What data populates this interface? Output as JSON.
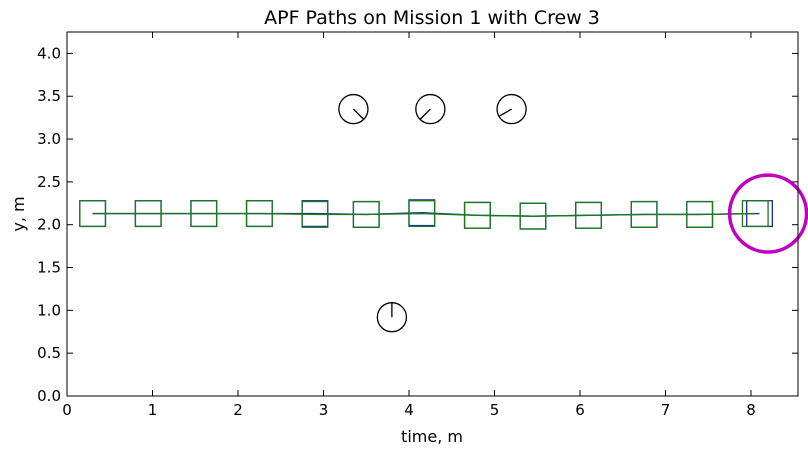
{
  "chart_data": {
    "type": "scatter",
    "title": "APF Paths on Mission 1 with Crew 3",
    "xlabel": "time, m",
    "ylabel": "y, m",
    "xlim": [
      0,
      8.55
    ],
    "ylim": [
      0,
      4.25
    ],
    "xticks": [
      0,
      1,
      2,
      3,
      4,
      5,
      6,
      7,
      8
    ],
    "yticks": [
      0.0,
      0.5,
      1.0,
      1.5,
      2.0,
      2.5,
      3.0,
      3.5,
      4.0
    ],
    "xtick_labels": [
      "0",
      "1",
      "2",
      "3",
      "4",
      "5",
      "6",
      "7",
      "8"
    ],
    "ytick_labels": [
      "0.0",
      "0.5",
      "1.0",
      "1.5",
      "2.0",
      "2.5",
      "3.0",
      "3.5",
      "4.0"
    ],
    "grid": false,
    "colors": {
      "path_green": "#1a7a1a",
      "path_blue": "#1a2aa6",
      "goal": "#bf00bf",
      "obstacle": "#000000",
      "axis": "#000000"
    },
    "series": [
      {
        "name": "green-path",
        "color_key": "path_green",
        "x": [
          0.3,
          0.95,
          1.6,
          2.25,
          2.9,
          3.5,
          4.15,
          4.8,
          5.45,
          6.1,
          6.75,
          7.4,
          8.05
        ],
        "y": [
          2.13,
          2.13,
          2.13,
          2.13,
          2.12,
          2.12,
          2.13,
          2.11,
          2.1,
          2.11,
          2.12,
          2.12,
          2.13
        ],
        "markers": "square"
      },
      {
        "name": "blue-path",
        "color_key": "path_blue",
        "x": [
          0.3,
          0.95,
          1.6,
          2.25,
          2.9,
          3.5,
          4.15,
          4.8,
          5.45,
          6.1,
          6.75,
          7.4,
          8.1
        ],
        "y": [
          2.13,
          2.13,
          2.13,
          2.13,
          2.13,
          2.12,
          2.14,
          2.11,
          2.1,
          2.11,
          2.12,
          2.12,
          2.13
        ],
        "markers": "square"
      }
    ],
    "obstacles": [
      {
        "x": 3.35,
        "y": 3.35,
        "heading_deg": -45
      },
      {
        "x": 4.25,
        "y": 3.35,
        "heading_deg": -135
      },
      {
        "x": 5.2,
        "y": 3.35,
        "heading_deg": -150
      },
      {
        "x": 3.8,
        "y": 0.92,
        "heading_deg": 90
      }
    ],
    "goal": {
      "x": 8.2,
      "y": 2.13
    }
  }
}
